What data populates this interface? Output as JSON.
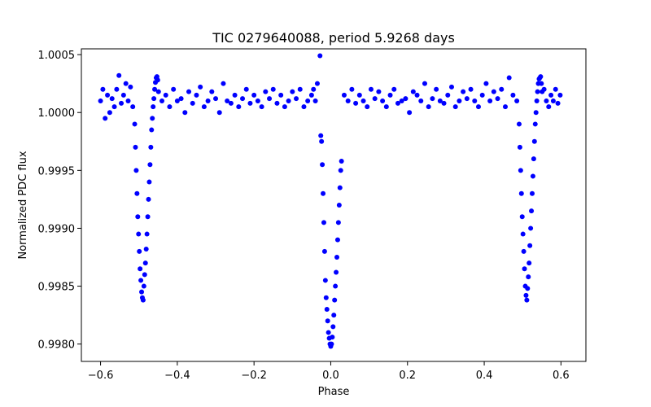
{
  "chart_data": {
    "type": "scatter",
    "title": "TIC 0279640088, period 5.9268 days",
    "xlabel": "Phase",
    "ylabel": "Normalized PDC flux",
    "xlim": [
      -0.65,
      0.665
    ],
    "ylim": [
      0.99785,
      1.00055
    ],
    "xticks": [
      -0.6,
      -0.4,
      -0.2,
      0.0,
      0.2,
      0.4,
      0.6
    ],
    "xtick_labels": [
      "−0.6",
      "−0.4",
      "−0.2",
      "0.0",
      "0.2",
      "0.4",
      "0.6"
    ],
    "yticks": [
      0.998,
      0.9985,
      0.999,
      0.9995,
      1.0,
      1.0005
    ],
    "ytick_labels": [
      "0.9980",
      "0.9985",
      "0.9990",
      "0.9995",
      "1.0000",
      "1.0005"
    ],
    "grid": false,
    "marker_color": "#0000ff",
    "series": [
      {
        "x": [
          -0.6,
          -0.594,
          -0.588,
          -0.582,
          -0.576,
          -0.57,
          -0.564,
          -0.558,
          -0.552,
          -0.546,
          -0.54,
          -0.534,
          -0.528,
          -0.522,
          -0.516,
          -0.511,
          -0.509,
          -0.507,
          -0.505,
          -0.503,
          -0.501,
          -0.499,
          -0.497,
          -0.495,
          -0.493,
          -0.491,
          -0.489,
          -0.487,
          -0.485,
          -0.483,
          -0.481,
          -0.479,
          -0.477,
          -0.475,
          -0.473,
          -0.471,
          -0.469,
          -0.467,
          -0.465,
          -0.463,
          -0.461,
          -0.459,
          -0.457,
          -0.455,
          -0.453,
          -0.451,
          -0.449,
          -0.44,
          -0.43,
          -0.42,
          -0.41,
          -0.4,
          -0.39,
          -0.38,
          -0.37,
          -0.36,
          -0.35,
          -0.34,
          -0.33,
          -0.32,
          -0.31,
          -0.3,
          -0.29,
          -0.28,
          -0.27,
          -0.26,
          -0.25,
          -0.24,
          -0.23,
          -0.22,
          -0.21,
          -0.2,
          -0.19,
          -0.18,
          -0.17,
          -0.16,
          -0.15,
          -0.14,
          -0.13,
          -0.12,
          -0.11,
          -0.1,
          -0.09,
          -0.08,
          -0.07,
          -0.06,
          -0.05,
          -0.045,
          -0.04,
          -0.035,
          -0.028,
          -0.026,
          -0.024,
          -0.022,
          -0.02,
          -0.018,
          -0.016,
          -0.014,
          -0.012,
          -0.01,
          -0.008,
          -0.006,
          -0.004,
          -0.002,
          0.0,
          0.002,
          0.004,
          0.006,
          0.008,
          0.01,
          0.012,
          0.014,
          0.016,
          0.018,
          0.02,
          0.022,
          0.024,
          0.026,
          0.028,
          0.035,
          0.045,
          0.055,
          0.065,
          0.075,
          0.085,
          0.095,
          0.105,
          0.115,
          0.125,
          0.135,
          0.145,
          0.155,
          0.165,
          0.175,
          0.185,
          0.195,
          0.205,
          0.215,
          0.225,
          0.235,
          0.245,
          0.255,
          0.265,
          0.275,
          0.285,
          0.295,
          0.305,
          0.315,
          0.325,
          0.335,
          0.345,
          0.355,
          0.365,
          0.375,
          0.385,
          0.395,
          0.405,
          0.415,
          0.425,
          0.435,
          0.445,
          0.455,
          0.465,
          0.475,
          0.485,
          0.491,
          0.493,
          0.495,
          0.497,
          0.499,
          0.501,
          0.503,
          0.505,
          0.507,
          0.509,
          0.511,
          0.513,
          0.515,
          0.517,
          0.519,
          0.521,
          0.523,
          0.525,
          0.527,
          0.529,
          0.531,
          0.533,
          0.535,
          0.537,
          0.539,
          0.541,
          0.543,
          0.545,
          0.547,
          0.549,
          0.551,
          0.556,
          0.562,
          0.568,
          0.574,
          0.58,
          0.586,
          0.592,
          0.598
        ],
        "y": [
          1.0001,
          1.0002,
          0.99995,
          1.00015,
          1.0,
          1.00012,
          1.00005,
          1.0002,
          1.00032,
          1.00008,
          1.00015,
          1.00025,
          1.0001,
          1.00022,
          1.00005,
          0.9999,
          0.9997,
          0.9995,
          0.9993,
          0.9991,
          0.99895,
          0.9988,
          0.99865,
          0.99855,
          0.99845,
          0.9984,
          0.99838,
          0.9985,
          0.9986,
          0.9987,
          0.99882,
          0.99895,
          0.9991,
          0.99925,
          0.9994,
          0.99955,
          0.9997,
          0.99985,
          0.99995,
          1.00005,
          1.00012,
          1.0002,
          1.00026,
          1.0003,
          1.00031,
          1.00028,
          1.00018,
          1.0001,
          1.00015,
          1.00005,
          1.0002,
          1.0001,
          1.00012,
          1.0,
          1.00018,
          1.00008,
          1.00015,
          1.00022,
          1.00005,
          1.0001,
          1.00018,
          1.00012,
          1.0,
          1.00025,
          1.0001,
          1.00008,
          1.00015,
          1.00005,
          1.00012,
          1.0002,
          1.00008,
          1.00015,
          1.0001,
          1.00005,
          1.00018,
          1.00012,
          1.0002,
          1.00008,
          1.00015,
          1.00005,
          1.0001,
          1.00018,
          1.00012,
          1.0002,
          1.00005,
          1.0001,
          1.00015,
          1.0002,
          1.0001,
          1.00025,
          1.00049,
          0.9998,
          0.99975,
          0.99955,
          0.9993,
          0.99905,
          0.9988,
          0.99855,
          0.9984,
          0.9983,
          0.9982,
          0.9981,
          0.99805,
          0.998,
          0.99798,
          0.998,
          0.99806,
          0.99815,
          0.99825,
          0.99838,
          0.9985,
          0.99862,
          0.99875,
          0.9989,
          0.99905,
          0.9992,
          0.99935,
          0.9995,
          0.99958,
          1.00015,
          1.0001,
          1.0002,
          1.00008,
          1.00015,
          1.0001,
          1.00005,
          1.0002,
          1.00012,
          1.00018,
          1.0001,
          1.00005,
          1.00015,
          1.0002,
          1.00008,
          1.0001,
          1.00012,
          1.0,
          1.00018,
          1.00015,
          1.0001,
          1.00025,
          1.00005,
          1.00012,
          1.0002,
          1.0001,
          1.00008,
          1.00015,
          1.00022,
          1.00005,
          1.0001,
          1.00018,
          1.00012,
          1.0002,
          1.0001,
          1.00005,
          1.00015,
          1.00025,
          1.0001,
          1.00018,
          1.00012,
          1.0002,
          1.00005,
          1.0003,
          1.00015,
          1.0001,
          0.9999,
          0.9997,
          0.9995,
          0.9993,
          0.9991,
          0.99895,
          0.9988,
          0.99865,
          0.9985,
          0.99842,
          0.99838,
          0.99848,
          0.99858,
          0.9987,
          0.99885,
          0.999,
          0.99915,
          0.9993,
          0.99945,
          0.9996,
          0.99975,
          0.9999,
          1.0,
          1.0001,
          1.00018,
          1.00025,
          1.00029,
          1.0003,
          1.00031,
          1.00025,
          1.00018,
          1.0002,
          1.0001,
          1.00005,
          1.00015,
          1.0001,
          1.0002,
          1.00008,
          1.00015
        ]
      }
    ]
  }
}
